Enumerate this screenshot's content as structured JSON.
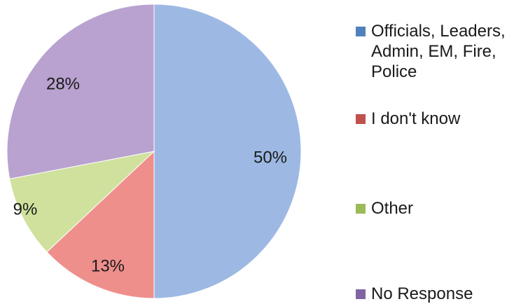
{
  "chart_data": {
    "type": "pie",
    "title": "",
    "categories": [
      "Officials, Leaders, Admin, EM, Fire, Police",
      "I don't know",
      "Other",
      "No Response"
    ],
    "legend_labels": [
      "Officials, Leaders,\nAdmin, EM, Fire,\nPolice",
      "I don't know",
      "Other",
      "No Response"
    ],
    "values": [
      50,
      13,
      9,
      28
    ],
    "value_labels": [
      "50%",
      "13%",
      "9%",
      "28%"
    ],
    "colors": [
      "#9db9e3",
      "#ee8f8c",
      "#cfe19d",
      "#b9a2cf"
    ],
    "legend_colors": [
      "#4f81bd",
      "#c0504d",
      "#9bbb59",
      "#8064a2"
    ],
    "legend_position": "right"
  }
}
